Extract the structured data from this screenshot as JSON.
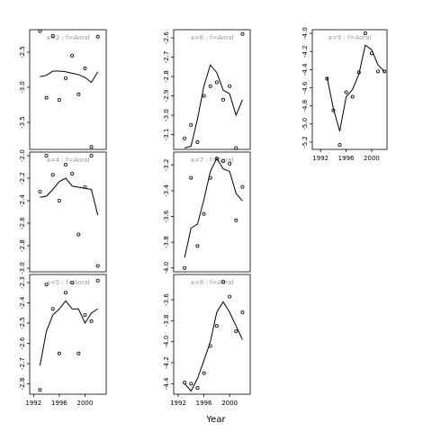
{
  "xlabel": "Year",
  "chart_data": [
    {
      "type": "scatter",
      "title": "a=3 : f=Aoral",
      "x": [
        1993,
        1994,
        1995,
        1996,
        1997,
        1998,
        1999,
        2000,
        2001,
        2002
      ],
      "xlim": [
        1991.4,
        2003.3
      ],
      "ylim": [
        -3.885,
        -2.18
      ],
      "yticks": [
        -2.5,
        {
          "value": -3,
          "label": "-3.0"
        },
        -3.5
      ],
      "series": [
        {
          "values": [
            -2.2,
            -3.15,
            -2.27,
            -3.18,
            -2.87,
            -2.55,
            -3.1,
            -2.73,
            -3.85,
            -2.28
          ],
          "style": "points"
        },
        {
          "values": [
            -2.85,
            -2.83,
            -2.77,
            -2.77,
            -2.78,
            -2.8,
            -2.82,
            -2.86,
            -2.93,
            -2.78
          ],
          "style": "line"
        }
      ]
    },
    {
      "type": "scatter",
      "title": "a=4 : f=Aoral",
      "x": [
        1993,
        1994,
        1995,
        1996,
        1997,
        1998,
        1999,
        2000,
        2001,
        2002
      ],
      "xlim": [
        1991.4,
        2003.3
      ],
      "ylim": [
        -3.032,
        -1.968
      ],
      "yticks": [
        {
          "value": -2,
          "label": "-2.0"
        },
        -2.2,
        -2.4,
        -2.6,
        -2.8,
        {
          "value": -3,
          "label": "-3.0"
        }
      ],
      "series": [
        {
          "values": [
            -2.32,
            -2.0,
            -2.17,
            -2.4,
            -2.08,
            -2.16,
            -2.7,
            -2.28,
            -2.0,
            -2.98
          ],
          "style": "points"
        },
        {
          "values": [
            -2.37,
            -2.36,
            -2.3,
            -2.23,
            -2.2,
            -2.27,
            -2.28,
            -2.29,
            -2.3,
            -2.53
          ],
          "style": "line"
        }
      ]
    },
    {
      "type": "scatter",
      "title": "a=5 : f=Aoral",
      "x": [
        1993,
        1994,
        1995,
        1996,
        1997,
        1998,
        1999,
        2000,
        2001,
        2002
      ],
      "xlim": [
        1991.4,
        2003.3
      ],
      "ylim": [
        -2.851,
        -2.26
      ],
      "xticks": [
        1992,
        1996,
        2000
      ],
      "yticks": [
        -2.3,
        -2.4,
        -2.5,
        -2.6,
        -2.7,
        -2.8
      ],
      "series": [
        {
          "values": [
            -2.83,
            -2.31,
            -2.43,
            -2.65,
            -2.35,
            -2.3,
            -2.65,
            -2.46,
            -2.49,
            -2.29
          ],
          "style": "points"
        },
        {
          "values": [
            -2.71,
            -2.54,
            -2.46,
            -2.43,
            -2.39,
            -2.43,
            -2.43,
            -2.5,
            -2.45,
            -2.43
          ],
          "style": "line"
        }
      ]
    },
    {
      "type": "scatter",
      "title": "a=6 : f=Aoral",
      "x": [
        1993,
        1994,
        1995,
        1996,
        1997,
        1998,
        1999,
        2000,
        2001,
        2002
      ],
      "xlim": [
        1991.3,
        2003.2
      ],
      "ylim": [
        -3.177,
        -2.558
      ],
      "yticks": [
        -2.6,
        -2.7,
        -2.8,
        -2.9,
        {
          "value": -3,
          "label": "-3.0"
        },
        -3.1
      ],
      "series": [
        {
          "values": [
            -3.12,
            -3.05,
            -3.14,
            -2.9,
            -2.85,
            -2.83,
            -2.92,
            -2.85,
            -3.17,
            -2.58
          ],
          "style": "points"
        },
        {
          "values": [
            -3.17,
            -3.16,
            -3.02,
            -2.85,
            -2.74,
            -2.78,
            -2.87,
            -2.89,
            -3.0,
            -2.92
          ],
          "style": "line"
        }
      ]
    },
    {
      "type": "scatter",
      "title": "a=7 : f=Aoral",
      "x": [
        1993,
        1994,
        1995,
        1996,
        1997,
        1998,
        1999,
        2000,
        2001,
        2002
      ],
      "xlim": [
        1991.3,
        2003.2
      ],
      "ylim": [
        -4.03,
        -3.1
      ],
      "yticks": [
        -3.2,
        -3.4,
        -3.6,
        -3.8,
        {
          "value": -4,
          "label": "-4.0"
        }
      ],
      "series": [
        {
          "values": [
            -4.0,
            -3.3,
            -3.83,
            -3.58,
            -3.3,
            -3.15,
            -3.17,
            -3.19,
            -3.63,
            -3.37
          ],
          "style": "points"
        },
        {
          "values": [
            -3.92,
            -3.69,
            -3.66,
            -3.47,
            -3.25,
            -3.15,
            -3.23,
            -3.25,
            -3.42,
            -3.48
          ],
          "style": "line"
        }
      ]
    },
    {
      "type": "scatter",
      "title": "a=8 : f=Aoral",
      "x": [
        1993,
        1994,
        1995,
        1996,
        1997,
        1998,
        1999,
        2000,
        2001,
        2002
      ],
      "xlim": [
        1991.3,
        2003.2
      ],
      "ylim": [
        -4.5,
        -3.36
      ],
      "xticks": [
        1992,
        1996,
        2000
      ],
      "yticks": [
        -3.6,
        -3.8,
        {
          "value": -4,
          "label": "-4.0"
        },
        -4.2,
        -4.4
      ],
      "series": [
        {
          "values": [
            -4.39,
            -4.4,
            -4.44,
            -4.3,
            -4.04,
            -3.85,
            -3.43,
            -3.57,
            -3.9,
            -3.72
          ],
          "style": "points"
        },
        {
          "values": [
            -4.4,
            -4.47,
            -4.35,
            -4.18,
            -4.0,
            -3.72,
            -3.62,
            -3.72,
            -3.85,
            -3.98
          ],
          "style": "line"
        }
      ]
    },
    {
      "type": "scatter",
      "title": "a=9 : f=Aoral",
      "x": [
        1993,
        1994,
        1995,
        1996,
        1997,
        1998,
        1999,
        2000,
        2001,
        2002
      ],
      "xlim": [
        1990.7,
        2002.4
      ],
      "ylim": [
        -5.28,
        -3.96
      ],
      "xticks": [
        1992,
        1996,
        2000
      ],
      "yticks": [
        {
          "value": -4,
          "label": "-4.0"
        },
        -4.2,
        -4.4,
        -4.6,
        -4.8,
        {
          "value": -5,
          "label": "-5.0"
        },
        -5.2
      ],
      "series": [
        {
          "values": [
            -4.5,
            -4.85,
            -5.23,
            -4.65,
            -4.7,
            -4.43,
            -4.0,
            -4.22,
            -4.42,
            -4.42
          ],
          "style": "points"
        },
        {
          "values": [
            -4.48,
            -4.83,
            -5.08,
            -4.7,
            -4.62,
            -4.45,
            -4.13,
            -4.18,
            -4.35,
            -4.42
          ],
          "style": "line"
        }
      ]
    }
  ]
}
